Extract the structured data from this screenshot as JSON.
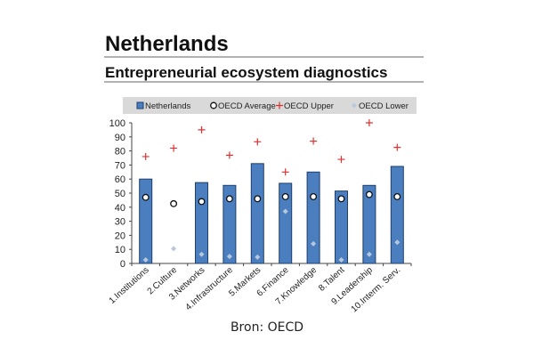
{
  "chart_data": {
    "type": "bar",
    "title": "Netherlands",
    "subtitle": "Entrepreneurial ecosystem diagnostics",
    "categories": [
      "1.Institutions",
      "2.Culture",
      "3.Networks",
      "4.Infrastructure",
      "5.Markets",
      "6.Finance",
      "7.Knowledge",
      "8.Talent",
      "9.Leadership",
      "10.Interm. Serv."
    ],
    "series": [
      {
        "name": "Netherlands",
        "kind": "bar",
        "color": "#4a7ebf",
        "values": [
          60,
          null,
          57.5,
          55.5,
          71,
          57,
          65,
          51.5,
          55.5,
          69
        ]
      },
      {
        "name": "OECD Average",
        "kind": "circle",
        "color": "#ffffff",
        "values": [
          47,
          42.5,
          44,
          46,
          46,
          47.5,
          47.5,
          46,
          49,
          47.5
        ]
      },
      {
        "name": "OECD Upper",
        "kind": "plus",
        "color": "#e03030",
        "values": [
          76,
          82,
          95,
          77,
          86.5,
          65,
          87,
          74,
          100,
          82.5
        ]
      },
      {
        "name": "OECD Lower",
        "kind": "diamond",
        "color": "#b8c8dc",
        "values": [
          2.5,
          10.5,
          6.5,
          5,
          4.5,
          37,
          14,
          2.5,
          6.5,
          15
        ]
      }
    ],
    "ylim": [
      0,
      100
    ],
    "yticks": [
      0,
      10,
      20,
      30,
      40,
      50,
      60,
      70,
      80,
      90,
      100
    ],
    "legend": "top",
    "grid": false,
    "xlabel": "",
    "ylabel": ""
  },
  "source": "Bron: OECD"
}
